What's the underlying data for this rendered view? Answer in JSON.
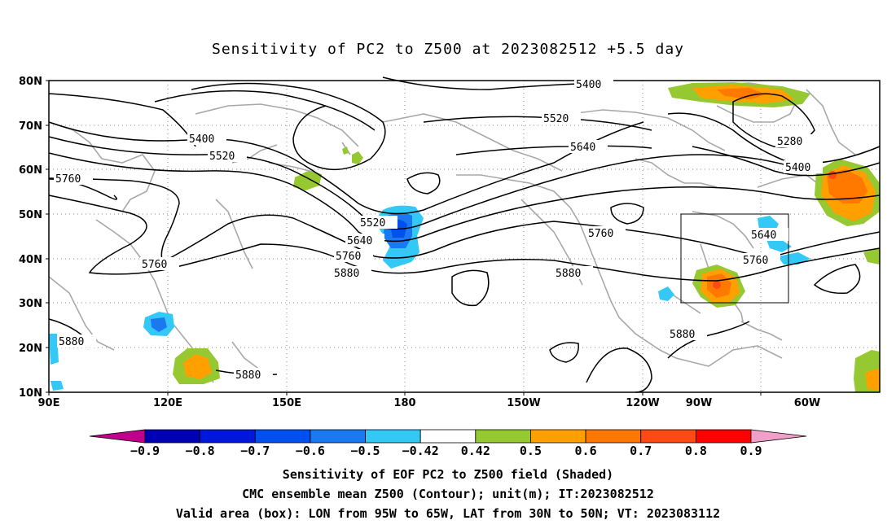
{
  "title": "Sensitivity of PC2 to Z500 at 2023082512 +5.5 day",
  "lat_ticks": [
    "80N",
    "70N",
    "60N",
    "50N",
    "40N",
    "30N",
    "20N",
    "10N"
  ],
  "lon_ticks": [
    "90E",
    "120E",
    "150E",
    "180",
    "150W",
    "120W",
    "90W",
    "60W"
  ],
  "contour_labels": {
    "c5400_left": "5400",
    "c5520_left": "5520",
    "c5760_left": "5760",
    "c5760_mid": "5760",
    "c5880_mid": "5880",
    "c5880_sw": "5880",
    "c5880_s": "5880",
    "c5400_top": "5400",
    "c5520_top": "5520",
    "c5640_top": "5640",
    "c5520_pac": "5520",
    "c5640_pac": "5640",
    "c5760_pac": "5760",
    "c5880_pac": "5880",
    "c5760_na": "5760",
    "c5880_na": "5880",
    "c5640_east": "5640",
    "c5760_east": "5760",
    "c5880_gulf": "5880",
    "c5280_ne": "5280",
    "c5400_ne": "5400"
  },
  "colorbar": {
    "colors": [
      "#c0008c",
      "#0000b4",
      "#0018dc",
      "#0050f0",
      "#1a78f0",
      "#33c8f5",
      "#ffffff",
      "#96c832",
      "#ffa000",
      "#ff7800",
      "#ff4a14",
      "#ff0000",
      "#f0a0c8"
    ],
    "labels": [
      "−0.9",
      "−0.8",
      "−0.7",
      "−0.6",
      "−0.5",
      "−0.42",
      "0.42",
      "0.5",
      "0.6",
      "0.7",
      "0.8",
      "0.9"
    ]
  },
  "captions": {
    "line1": "Sensitivity of EOF PC2 to Z500 field (Shaded)",
    "line2": "CMC ensemble mean Z500 (Contour); unit(m); IT:2023082512",
    "line3": "Valid area (box): LON from 95W to 65W, LAT from 30N to 50N; VT: 2023083112"
  }
}
